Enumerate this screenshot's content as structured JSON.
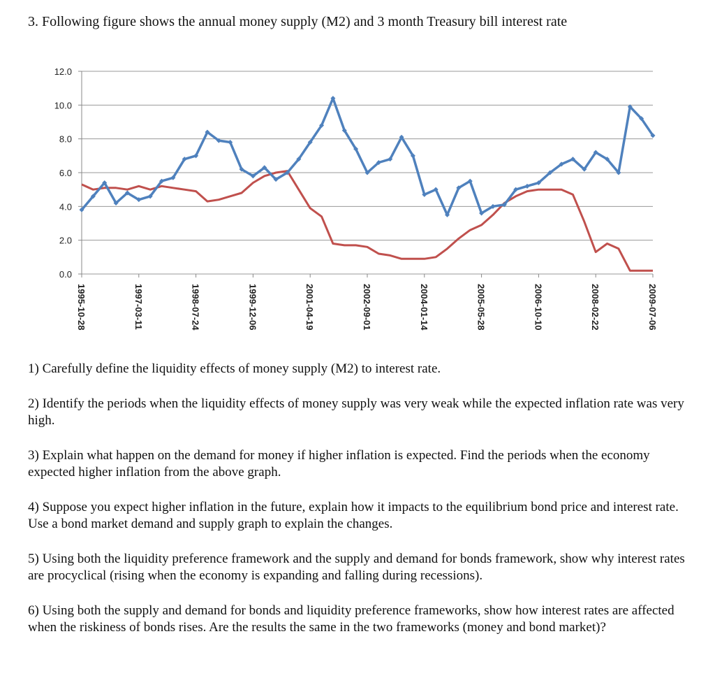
{
  "title": "3. Following figure shows the annual money supply (M2) and 3 month Treasury bill interest rate",
  "chart_data": {
    "type": "line",
    "categories": [
      "1995-10-28",
      null,
      null,
      null,
      null,
      "1997-03-11",
      null,
      null,
      null,
      null,
      "1998-07-24",
      null,
      null,
      null,
      null,
      "1999-12-06",
      null,
      null,
      null,
      null,
      "2001-04-19",
      null,
      null,
      null,
      null,
      "2002-09-01",
      null,
      null,
      null,
      null,
      "2004-01-14",
      null,
      null,
      null,
      null,
      "2005-05-28",
      null,
      null,
      null,
      null,
      "2006-10-10",
      null,
      null,
      null,
      null,
      "2008-02-22",
      null,
      null,
      null,
      null,
      "2009-07-06"
    ],
    "series": [
      {
        "color": "#4f81bd",
        "values": [
          3.8,
          4.6,
          5.4,
          4.2,
          4.8,
          4.4,
          4.6,
          5.5,
          5.7,
          6.8,
          7.0,
          8.4,
          7.9,
          7.8,
          6.2,
          5.8,
          6.3,
          5.6,
          6.0,
          6.8,
          7.8,
          8.8,
          10.4,
          8.5,
          7.4,
          6.0,
          6.6,
          6.8,
          8.1,
          7.0,
          4.7,
          5.0,
          3.5,
          5.1,
          5.5,
          3.6,
          4.0,
          4.1,
          5.0,
          5.2,
          5.4,
          6.0,
          6.5,
          6.8,
          6.2,
          7.2,
          6.8,
          6.0,
          9.9,
          9.2,
          8.2
        ]
      },
      {
        "color": "#c0504d",
        "values": [
          5.3,
          5.0,
          5.1,
          5.1,
          5.0,
          5.2,
          5.0,
          5.2,
          5.1,
          5.0,
          4.9,
          4.3,
          4.4,
          4.6,
          4.8,
          5.4,
          5.8,
          6.0,
          6.1,
          5.0,
          3.9,
          3.4,
          1.8,
          1.7,
          1.7,
          1.6,
          1.2,
          1.1,
          0.9,
          0.9,
          0.9,
          1.0,
          1.5,
          2.1,
          2.6,
          2.9,
          3.5,
          4.2,
          4.6,
          4.9,
          5.0,
          5.0,
          5.0,
          4.7,
          3.1,
          1.3,
          1.8,
          1.5,
          0.2,
          0.2,
          0.2
        ]
      }
    ],
    "ylim": [
      0,
      12
    ],
    "yticks": [
      {
        "value": 0,
        "label": "0.0"
      },
      {
        "value": 2,
        "label": "2.0"
      },
      {
        "value": 4,
        "label": "4.0"
      },
      {
        "value": 6,
        "label": "6.0"
      },
      {
        "value": 8,
        "label": "8.0"
      },
      {
        "value": 10,
        "label": "10.0"
      },
      {
        "value": 12,
        "label": "12.0"
      }
    ],
    "grid": true
  },
  "questions": [
    "1) Carefully define the liquidity effects of money supply (M2) to interest rate.",
    "2) Identify the periods when the liquidity effects of money supply was very weak while the expected inflation rate was very high.",
    "3) Explain what happen on the demand for money if higher inflation is expected. Find the periods when the economy expected higher inflation from the above graph.",
    "4) Suppose you expect higher inflation in the future, explain how it impacts to the equilibrium bond price and interest rate. Use a bond market demand and supply graph to explain the changes.",
    "5) Using both the liquidity preference framework and the supply and demand for bonds framework, show why interest rates are procyclical (rising when the economy is expanding and falling during recessions).",
    "6) Using both the supply and demand for bonds and liquidity preference frameworks, show how interest rates are affected when the riskiness of bonds rises. Are the results the same in the two frameworks (money and bond market)?"
  ]
}
